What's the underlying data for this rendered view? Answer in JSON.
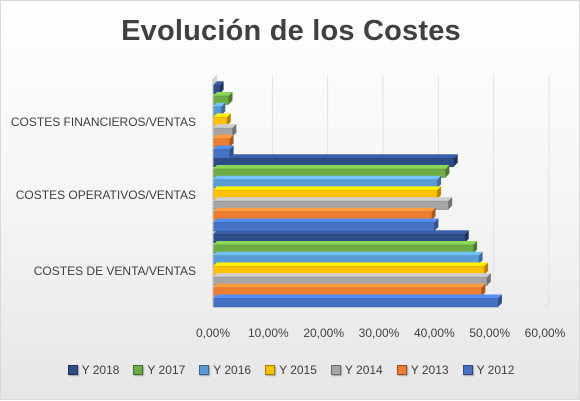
{
  "chart_data": {
    "type": "bar",
    "orientation": "horizontal",
    "style": "3d-clustered",
    "title": "Evolución de los Costes",
    "categories": [
      "COSTES DE VENTA/VENTAS",
      "COSTES OPERATIVOS/VENTAS",
      "COSTES FINANCIEROS/VENTAS"
    ],
    "xlim": [
      0,
      60
    ],
    "x_ticks": [
      "0,00%",
      "10,00%",
      "20,00%",
      "30,00%",
      "40,00%",
      "50,00%",
      "60,00%"
    ],
    "grid": true,
    "legend_position": "bottom",
    "series": [
      {
        "name": "Y 2018",
        "color": "#2e4d87",
        "values": [
          45.5,
          43.5,
          1.2
        ]
      },
      {
        "name": "Y 2017",
        "color": "#6fac46",
        "values": [
          47.0,
          42.0,
          2.8
        ]
      },
      {
        "name": "Y 2016",
        "color": "#5b9bd5",
        "values": [
          48.0,
          40.5,
          1.5
        ]
      },
      {
        "name": "Y 2015",
        "color": "#ffc000",
        "values": [
          49.0,
          40.5,
          2.5
        ]
      },
      {
        "name": "Y 2014",
        "color": "#a5a5a5",
        "values": [
          49.5,
          42.5,
          3.5
        ]
      },
      {
        "name": "Y 2013",
        "color": "#ed7d31",
        "values": [
          48.5,
          39.5,
          3.0
        ]
      },
      {
        "name": "Y 2012",
        "color": "#4472c4",
        "values": [
          51.5,
          40.0,
          3.0
        ]
      }
    ]
  }
}
